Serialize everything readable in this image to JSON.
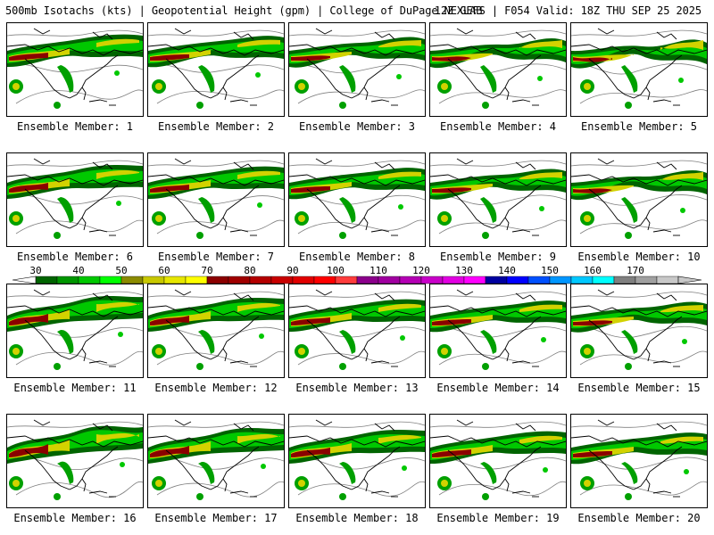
{
  "header": {
    "left": "500mb Isotachs (kts) | Geopotential Height (gpm) | College of DuPage NEXLAB",
    "right": "12Z GEFS | F054 Valid: 18Z THU SEP 25 2025"
  },
  "members": [
    {
      "label": "Ensemble Member: 1"
    },
    {
      "label": "Ensemble Member: 2"
    },
    {
      "label": "Ensemble Member: 3"
    },
    {
      "label": "Ensemble Member: 4"
    },
    {
      "label": "Ensemble Member: 5"
    },
    {
      "label": "Ensemble Member: 6"
    },
    {
      "label": "Ensemble Member: 7"
    },
    {
      "label": "Ensemble Member: 8"
    },
    {
      "label": "Ensemble Member: 9"
    },
    {
      "label": "Ensemble Member: 10"
    },
    {
      "label": "Ensemble Member: 11"
    },
    {
      "label": "Ensemble Member: 12"
    },
    {
      "label": "Ensemble Member: 13"
    },
    {
      "label": "Ensemble Member: 14"
    },
    {
      "label": "Ensemble Member: 15"
    },
    {
      "label": "Ensemble Member: 16"
    },
    {
      "label": "Ensemble Member: 17"
    },
    {
      "label": "Ensemble Member: 18"
    },
    {
      "label": "Ensemble Member: 19"
    },
    {
      "label": "Ensemble Member: 20"
    }
  ],
  "colorbar": {
    "tick_labels": [
      "30",
      "40",
      "50",
      "60",
      "70",
      "80",
      "90",
      "100",
      "110",
      "120",
      "130",
      "140",
      "150",
      "160",
      "170"
    ],
    "colors": [
      "#006400",
      "#009600",
      "#00c800",
      "#00ff00",
      "#8b8b00",
      "#c8c800",
      "#e6e600",
      "#ffff00",
      "#8b0000",
      "#a00000",
      "#b40000",
      "#c80000",
      "#e10000",
      "#ff0000",
      "#ff3c3c",
      "#8b008b",
      "#a000a0",
      "#b400b4",
      "#c800c8",
      "#e100e1",
      "#ff00ff",
      "#0000a0",
      "#0000ff",
      "#0050ff",
      "#0096ff",
      "#00c8ff",
      "#00ffff",
      "#808080",
      "#a0a0a0",
      "#c8c8c8"
    ]
  },
  "map_colors": {
    "jet_dark": "#006400",
    "jet_mid": "#00a000",
    "jet_light": "#00c800",
    "jet_yellow": "#d2d200",
    "jet_core": "#8b0000",
    "height_contour": "#808080",
    "coast": "#000000"
  }
}
